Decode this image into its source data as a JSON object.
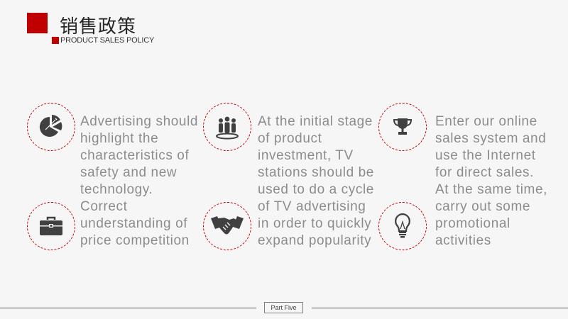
{
  "header": {
    "title": "销售政策",
    "subtitle": "PRODUCT SALES POLICY"
  },
  "icons": {
    "top_left": "pie-chart-icon",
    "bottom_left": "briefcase-icon",
    "top_middle": "team-icon",
    "bottom_middle": "handshake-icon",
    "top_right": "trophy-icon",
    "bottom_right": "lightbulb-icon"
  },
  "columns": [
    {
      "lines": [
        "Advertising should",
        "highlight the",
        "characteristics of",
        "safety and new",
        "technology.",
        "Correct",
        "understanding of",
        "price competition"
      ]
    },
    {
      "lines": [
        "At the initial stage",
        "of product",
        "investment, TV",
        "stations should be",
        "used to do a cycle",
        "of TV advertising",
        "in order to quickly",
        "expand popularity"
      ]
    },
    {
      "lines": [
        "Enter our online",
        "sales system and",
        "use the Internet",
        "for direct sales.",
        "At the same time,",
        "carry out some",
        "promotional",
        "activities"
      ]
    }
  ],
  "footer": {
    "label": "Part Five"
  },
  "colors": {
    "accent": "#c00000",
    "icon": "#404040",
    "text": "#8c8c8c"
  }
}
